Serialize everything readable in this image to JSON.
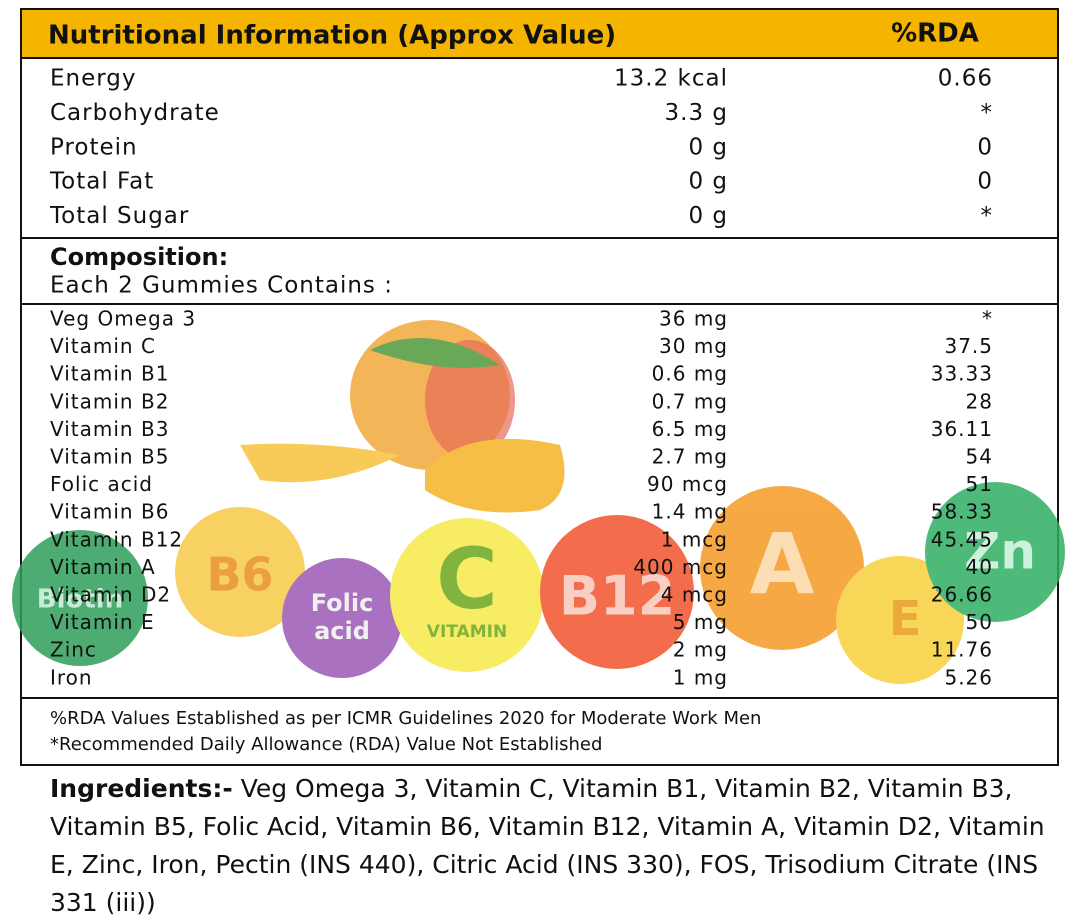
{
  "header": {
    "title": "Nutritional Information (Approx Value)",
    "rda": "%RDA"
  },
  "nutrition": [
    [
      "Energy",
      "13.2 kcal",
      "0.66"
    ],
    [
      "Carbohydrate",
      "3.3 g",
      "*"
    ],
    [
      "Protein",
      "0 g",
      "0"
    ],
    [
      "Total Fat",
      "0 g",
      "0"
    ],
    [
      "Total Sugar",
      "0 g",
      "*"
    ]
  ],
  "composition": {
    "title": "Composition:",
    "subtitle": "Each 2 Gummies Contains :"
  },
  "contents": [
    [
      "Veg Omega 3",
      "36 mg",
      "*"
    ],
    [
      "Vitamin C",
      "30 mg",
      "37.5"
    ],
    [
      "Vitamin B1",
      "0.6 mg",
      "33.33"
    ],
    [
      "Vitamin B2",
      "0.7 mg",
      "28"
    ],
    [
      "Vitamin B3",
      "6.5 mg",
      "36.11"
    ],
    [
      "Vitamin B5",
      "2.7 mg",
      "54"
    ],
    [
      "Folic acid",
      "90 mcg",
      "51"
    ],
    [
      "Vitamin B6",
      "1.4 mg",
      "58.33"
    ],
    [
      "Vitamin B12",
      "1 mcg",
      "45.45"
    ],
    [
      "Vitamin A",
      "400 mcg",
      "40"
    ],
    [
      "Vitamin D2",
      "4 mcg",
      "26.66"
    ],
    [
      "Vitamin E",
      "5 mg",
      "50"
    ],
    [
      "Zinc",
      "2 mg",
      "11.76"
    ],
    [
      "Iron",
      "1 mg",
      "5.26"
    ]
  ],
  "footnotes": [
    "%RDA Values Established as per ICMR Guidelines 2020 for Moderate Work Men",
    "*Recommended Daily Allowance (RDA) Value Not Established"
  ],
  "ingredients": {
    "label": "Ingredients:-",
    "text": "Veg Omega 3, Vitamin C, Vitamin B1, Vitamin B2, Vitamin B3, Vitamin B5, Folic Acid, Vitamin B6, Vitamin B12, Vitamin A, Vitamin D2, Vitamin E, Zinc, Iron, Pectin (INS 440), Citric Acid (INS 330), FOS, Trisodium Citrate (INS 331 (iii))"
  },
  "decorations": {
    "biotin": "Biotin",
    "b6": "B6",
    "folic": "Folic",
    "acid": "acid",
    "c": "C",
    "c_sub": "VITAMIN",
    "b12": "B12",
    "a": "A",
    "e": "E",
    "zn": "Zn"
  }
}
